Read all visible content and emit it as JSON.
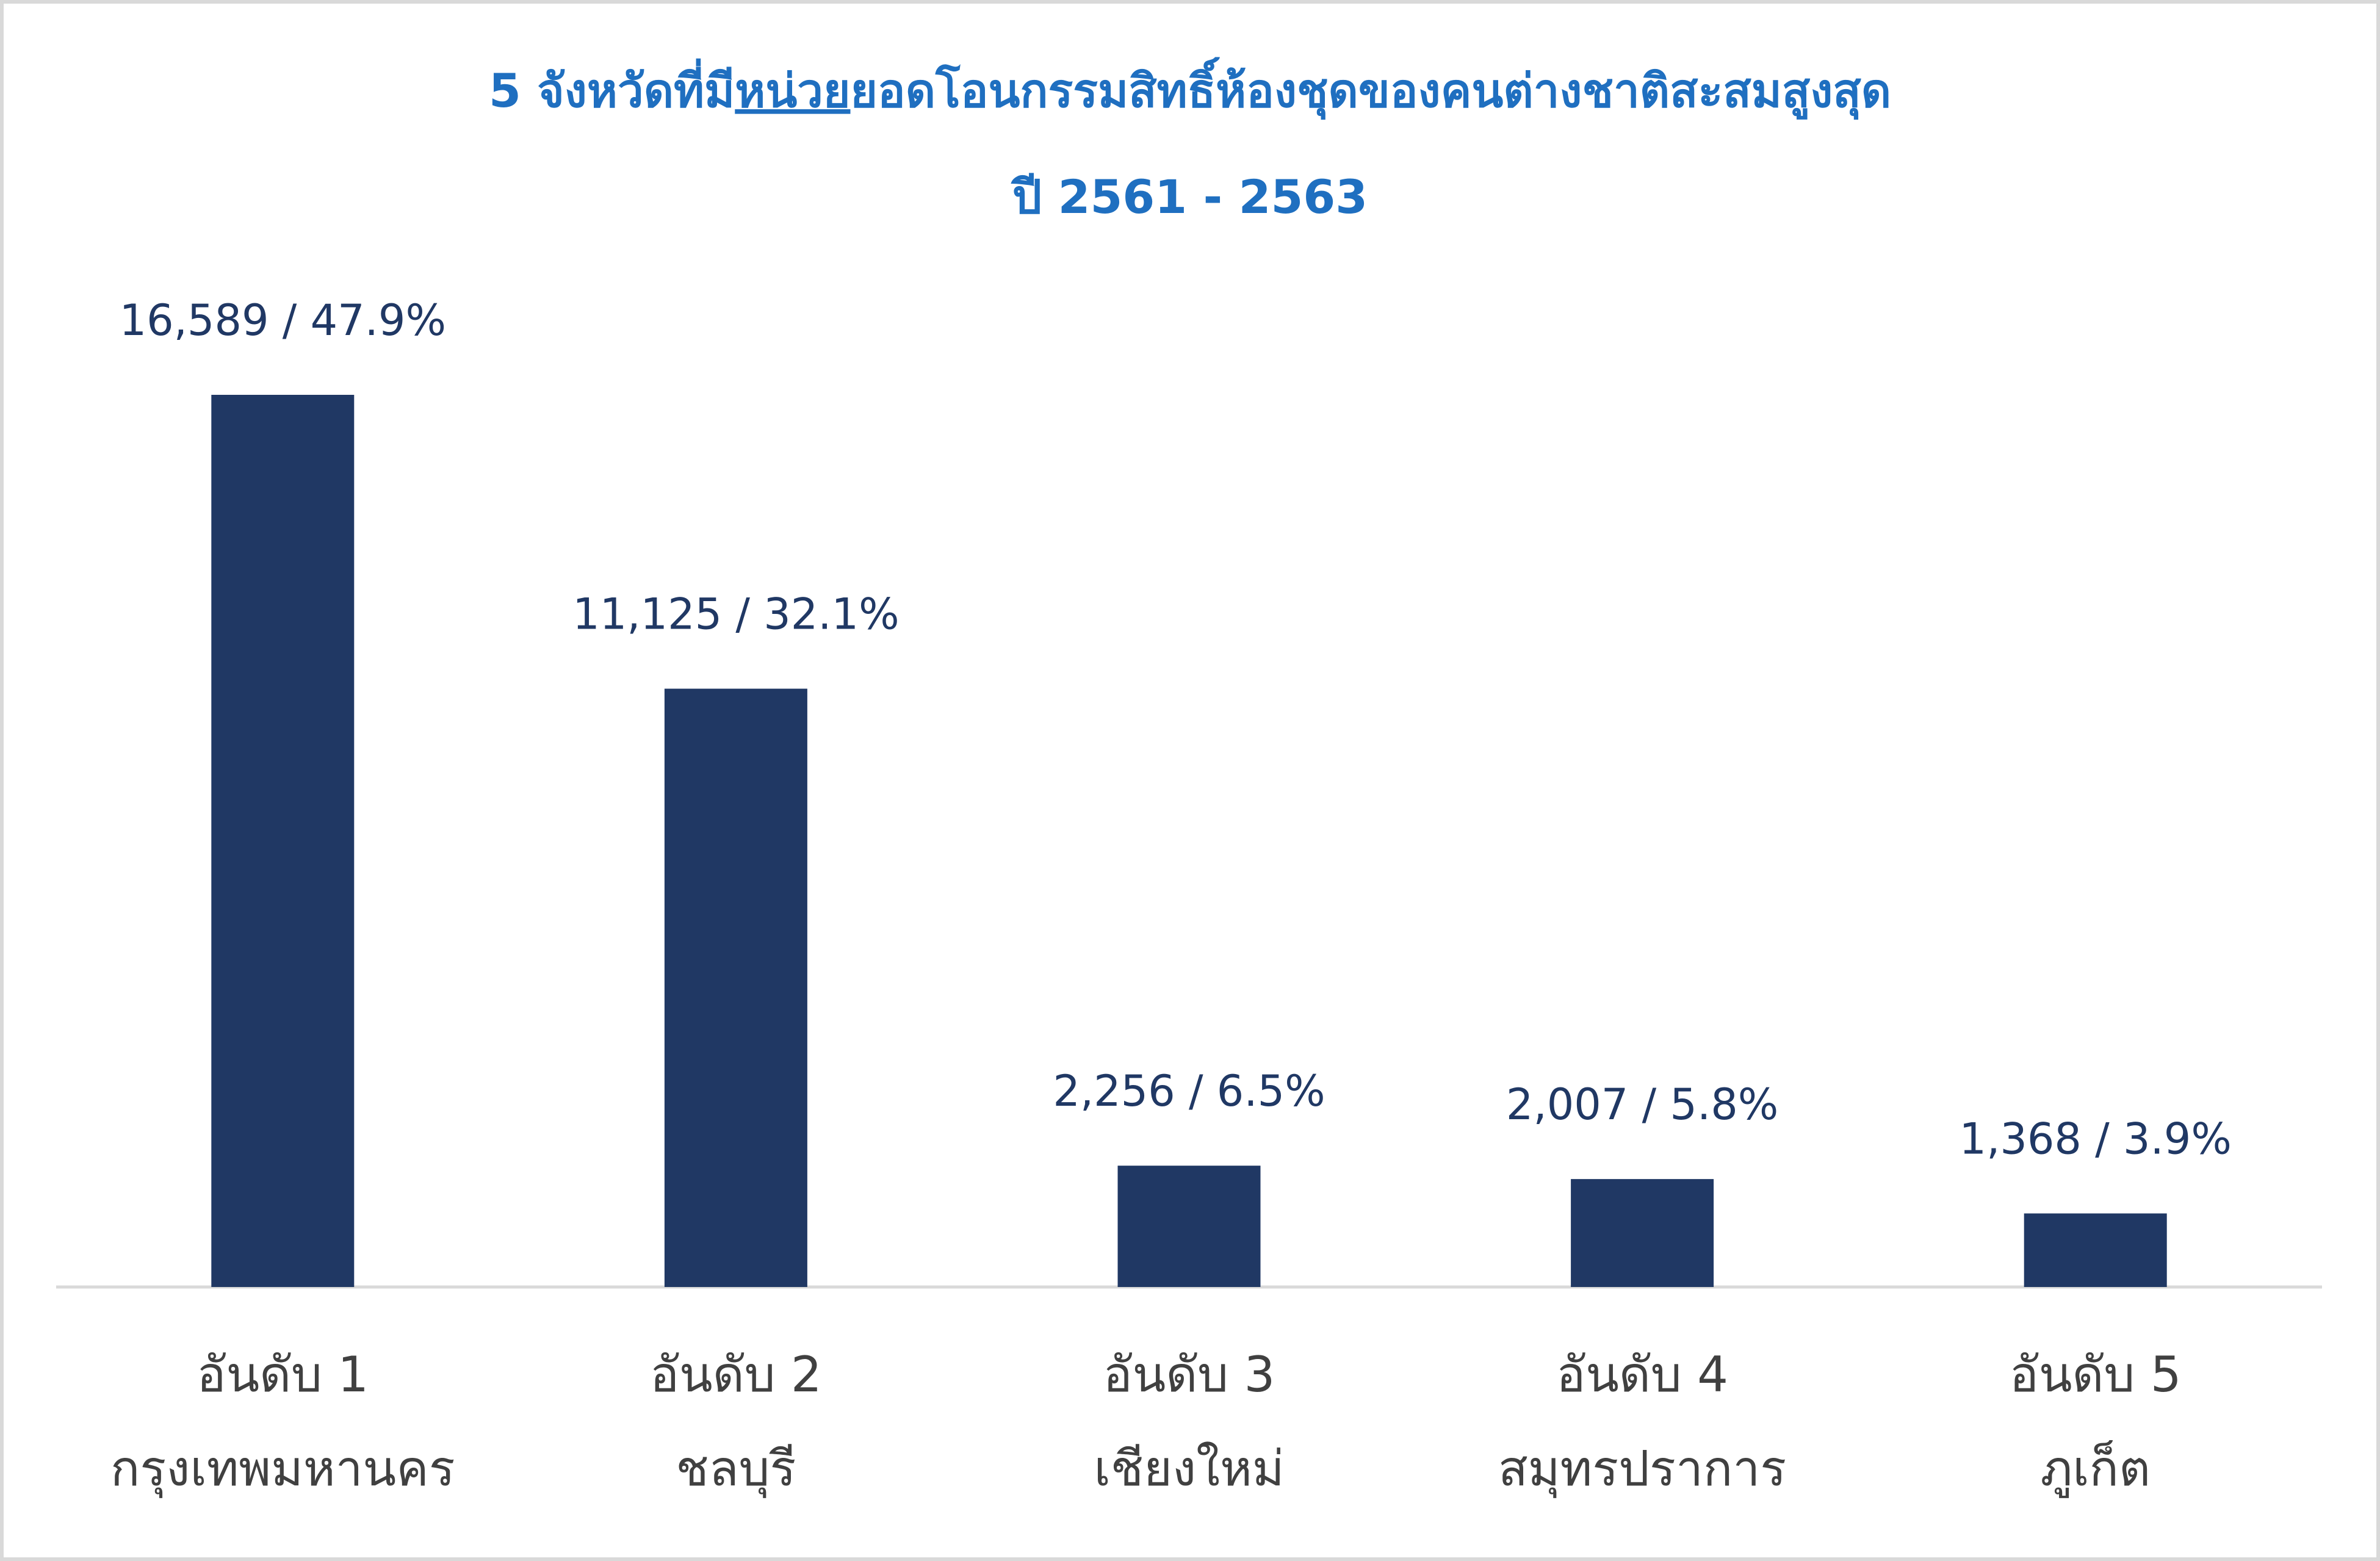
{
  "chart_data": {
    "type": "bar",
    "title": [
      "5 จังหวัดที่มี",
      "หน่วย",
      "ยอดโอนกรรมสิทธิ์ห้องชุดของคนต่างชาติสะสมสูงสุด"
    ],
    "subtitle": "ปี 2561 - 2563",
    "categories": [
      [
        "อันดับ 1",
        "กรุงเทพมหานคร"
      ],
      [
        "อันดับ 2",
        "ชลบุรี"
      ],
      [
        "อันดับ 3",
        "เชียงใหม่"
      ],
      [
        "อันดับ 4",
        "สมุทรปราการ"
      ],
      [
        "อันดับ 5",
        "ภูเก็ต"
      ]
    ],
    "values": [
      16589,
      11125,
      2256,
      2007,
      1368
    ],
    "value_labels": [
      "16,589 / 47.9%",
      "11,125 / 32.1%",
      "2,256 / 6.5%",
      "2,007 / 5.8%",
      "1,368 / 3.9%"
    ],
    "color": "#203864"
  }
}
